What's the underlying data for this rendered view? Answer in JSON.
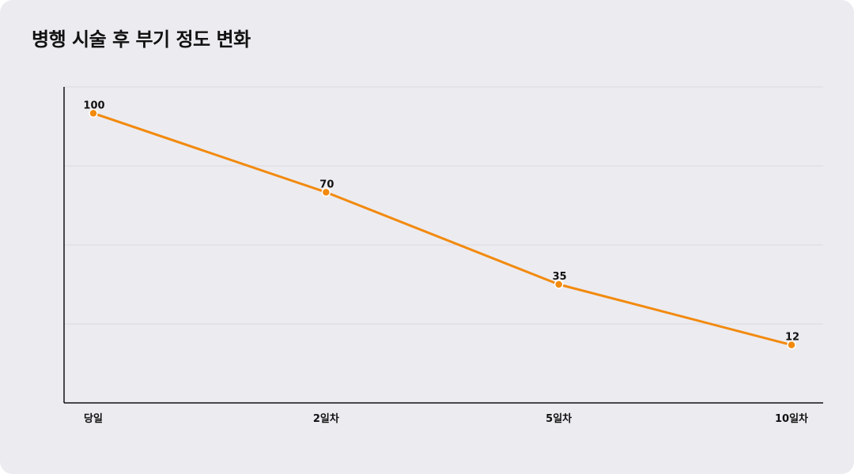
{
  "title": "병행 시술 후 부기 정도 변화",
  "colors": {
    "line": "#f28a0e",
    "grid": "#d9d8de",
    "axis": "#111111",
    "background": "#ecebf0"
  },
  "chart_data": {
    "type": "line",
    "title": "병행 시술 후 부기 정도 변화",
    "xlabel": "",
    "ylabel": "",
    "categories": [
      "당일",
      "2일차",
      "5일차",
      "10일차"
    ],
    "series": [
      {
        "values": [
          100,
          70,
          35,
          12
        ]
      }
    ],
    "ylim": [
      -10,
      110
    ],
    "grid": true,
    "y_tick_labels_shown": false,
    "data_labels": true,
    "legend": "none"
  }
}
